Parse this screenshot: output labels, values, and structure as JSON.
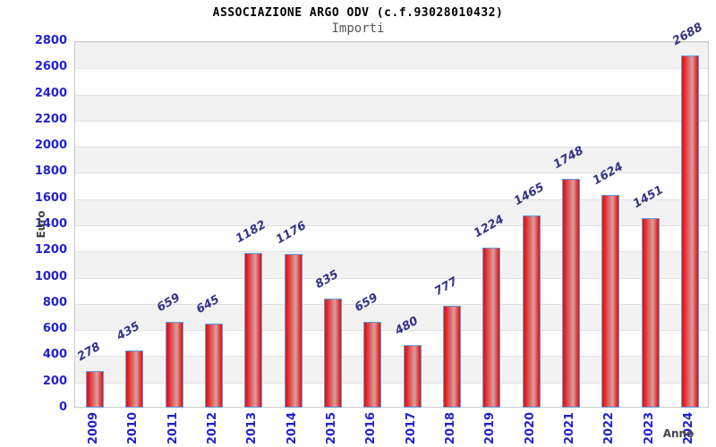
{
  "chart_data": {
    "type": "bar",
    "title": "ASSOCIAZIONE ARGO ODV (c.f.93028010432)",
    "subtitle": "Importi",
    "xlabel": "Anno",
    "ylabel": "Euro",
    "categories": [
      "2009",
      "2010",
      "2011",
      "2012",
      "2013",
      "2014",
      "2015",
      "2016",
      "2017",
      "2018",
      "2019",
      "2020",
      "2021",
      "2022",
      "2023",
      "2024"
    ],
    "values": [
      278,
      435,
      659,
      645,
      1182,
      1176,
      835,
      659,
      480,
      777,
      1224,
      1465,
      1748,
      1624,
      1451,
      2688
    ],
    "ylim": [
      0,
      2800
    ],
    "ytick_step": 200,
    "grid": "alternating horizontal bands every 200, gray on top band",
    "legend": "none",
    "value_labels": "above each bar, rotated -30deg",
    "x_labels_rotation": -90,
    "colors": {
      "bar_red": "#e31717",
      "bar_mid": "#d9a0a0",
      "bar_border": "#5f9fdf",
      "tick_label": "#2222cc",
      "value_label": "#333388",
      "band_gray": "#f2f2f2",
      "grid_line": "#e0e0e0",
      "plot_border": "#cccccc",
      "title": "#000000",
      "subtitle": "#555555",
      "axis_title": "#444444"
    }
  }
}
